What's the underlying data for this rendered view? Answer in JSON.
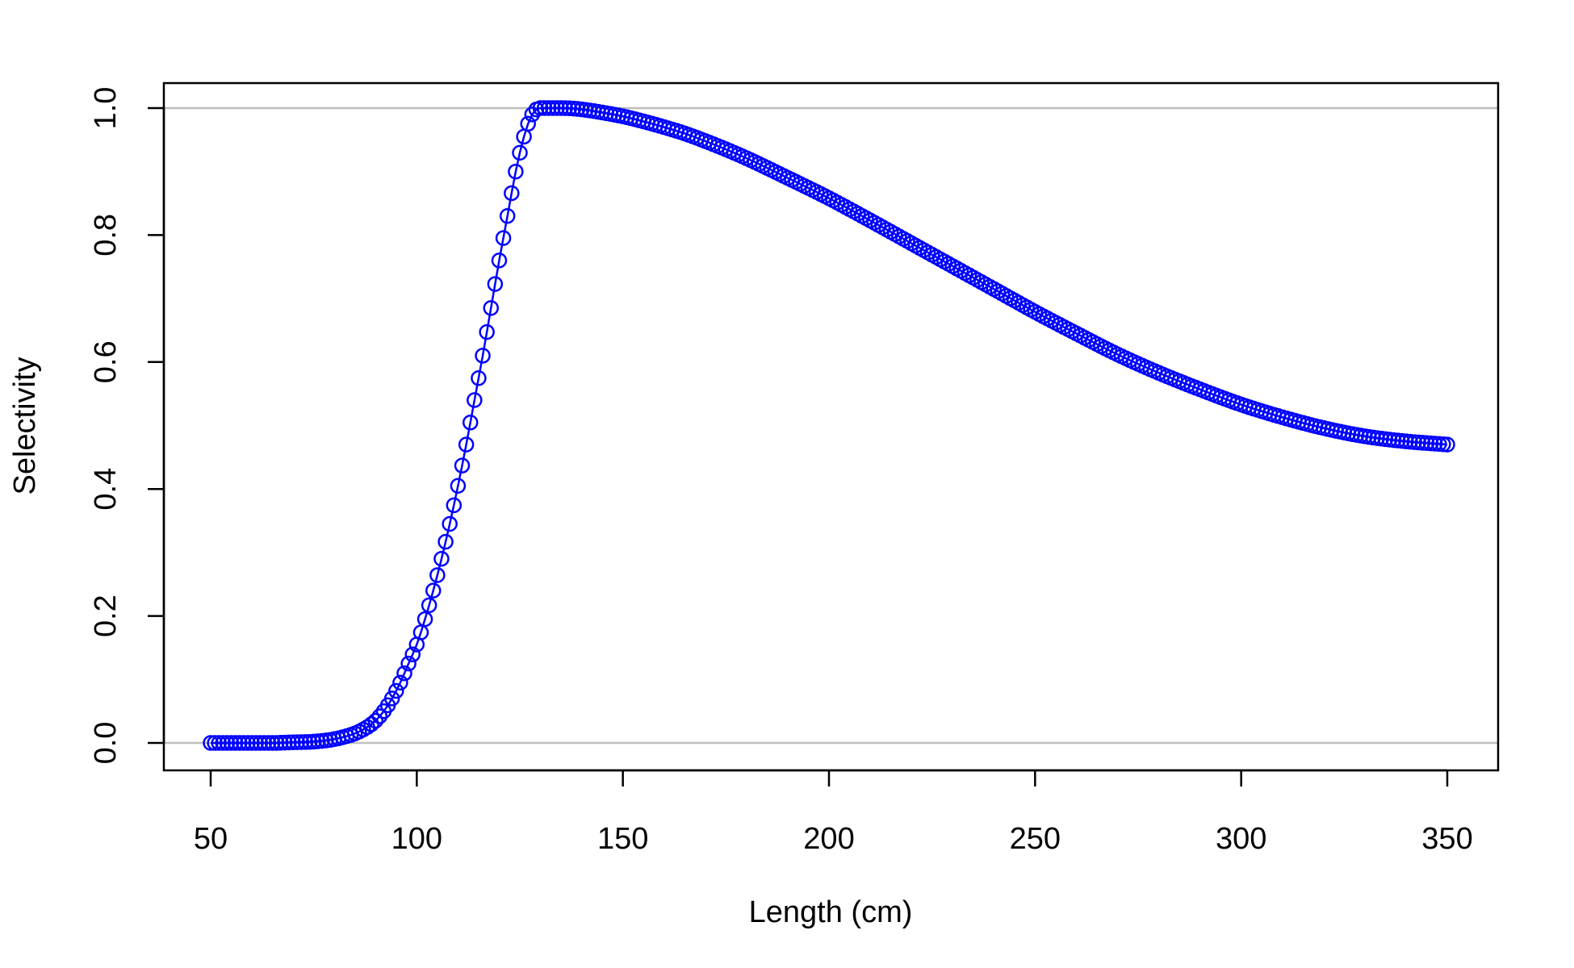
{
  "chart_data": {
    "type": "line",
    "title": "",
    "xlabel": "Length (cm)",
    "ylabel": "Selectivity",
    "xlim": [
      50,
      350
    ],
    "ylim": [
      0.0,
      1.0
    ],
    "xticks": [
      "50",
      "100",
      "150",
      "200",
      "250",
      "300",
      "350"
    ],
    "yticks": [
      "0.0",
      "0.2",
      "0.4",
      "0.6",
      "0.8",
      "1.0"
    ],
    "reference_lines_y": [
      0.0,
      1.0
    ],
    "reference_line_color": "#bebebe",
    "series_color": "#0000ff",
    "markers": "open-circle",
    "series": [
      {
        "x": [
          50,
          55,
          60,
          65,
          70,
          75,
          80,
          85,
          88,
          90,
          92,
          94,
          96,
          98,
          100,
          102,
          104,
          106,
          108,
          110,
          112,
          114,
          116,
          118,
          120,
          122,
          124,
          126,
          128,
          130,
          132,
          135,
          140,
          145,
          150,
          155,
          160,
          165,
          170,
          175,
          180,
          190,
          200,
          210,
          220,
          230,
          240,
          250,
          260,
          270,
          280,
          290,
          300,
          310,
          320,
          330,
          340,
          350
        ],
        "y": [
          0.0,
          0.0,
          0.0,
          0.0,
          0.001,
          0.002,
          0.006,
          0.015,
          0.025,
          0.035,
          0.05,
          0.07,
          0.095,
          0.125,
          0.155,
          0.195,
          0.24,
          0.29,
          0.345,
          0.405,
          0.47,
          0.54,
          0.61,
          0.685,
          0.76,
          0.83,
          0.9,
          0.955,
          0.99,
          1.0,
          1.0,
          1.0,
          0.998,
          0.993,
          0.987,
          0.979,
          0.97,
          0.96,
          0.948,
          0.935,
          0.921,
          0.89,
          0.858,
          0.823,
          0.787,
          0.751,
          0.715,
          0.679,
          0.645,
          0.612,
          0.583,
          0.557,
          0.533,
          0.513,
          0.496,
          0.483,
          0.475,
          0.47
        ]
      }
    ]
  }
}
